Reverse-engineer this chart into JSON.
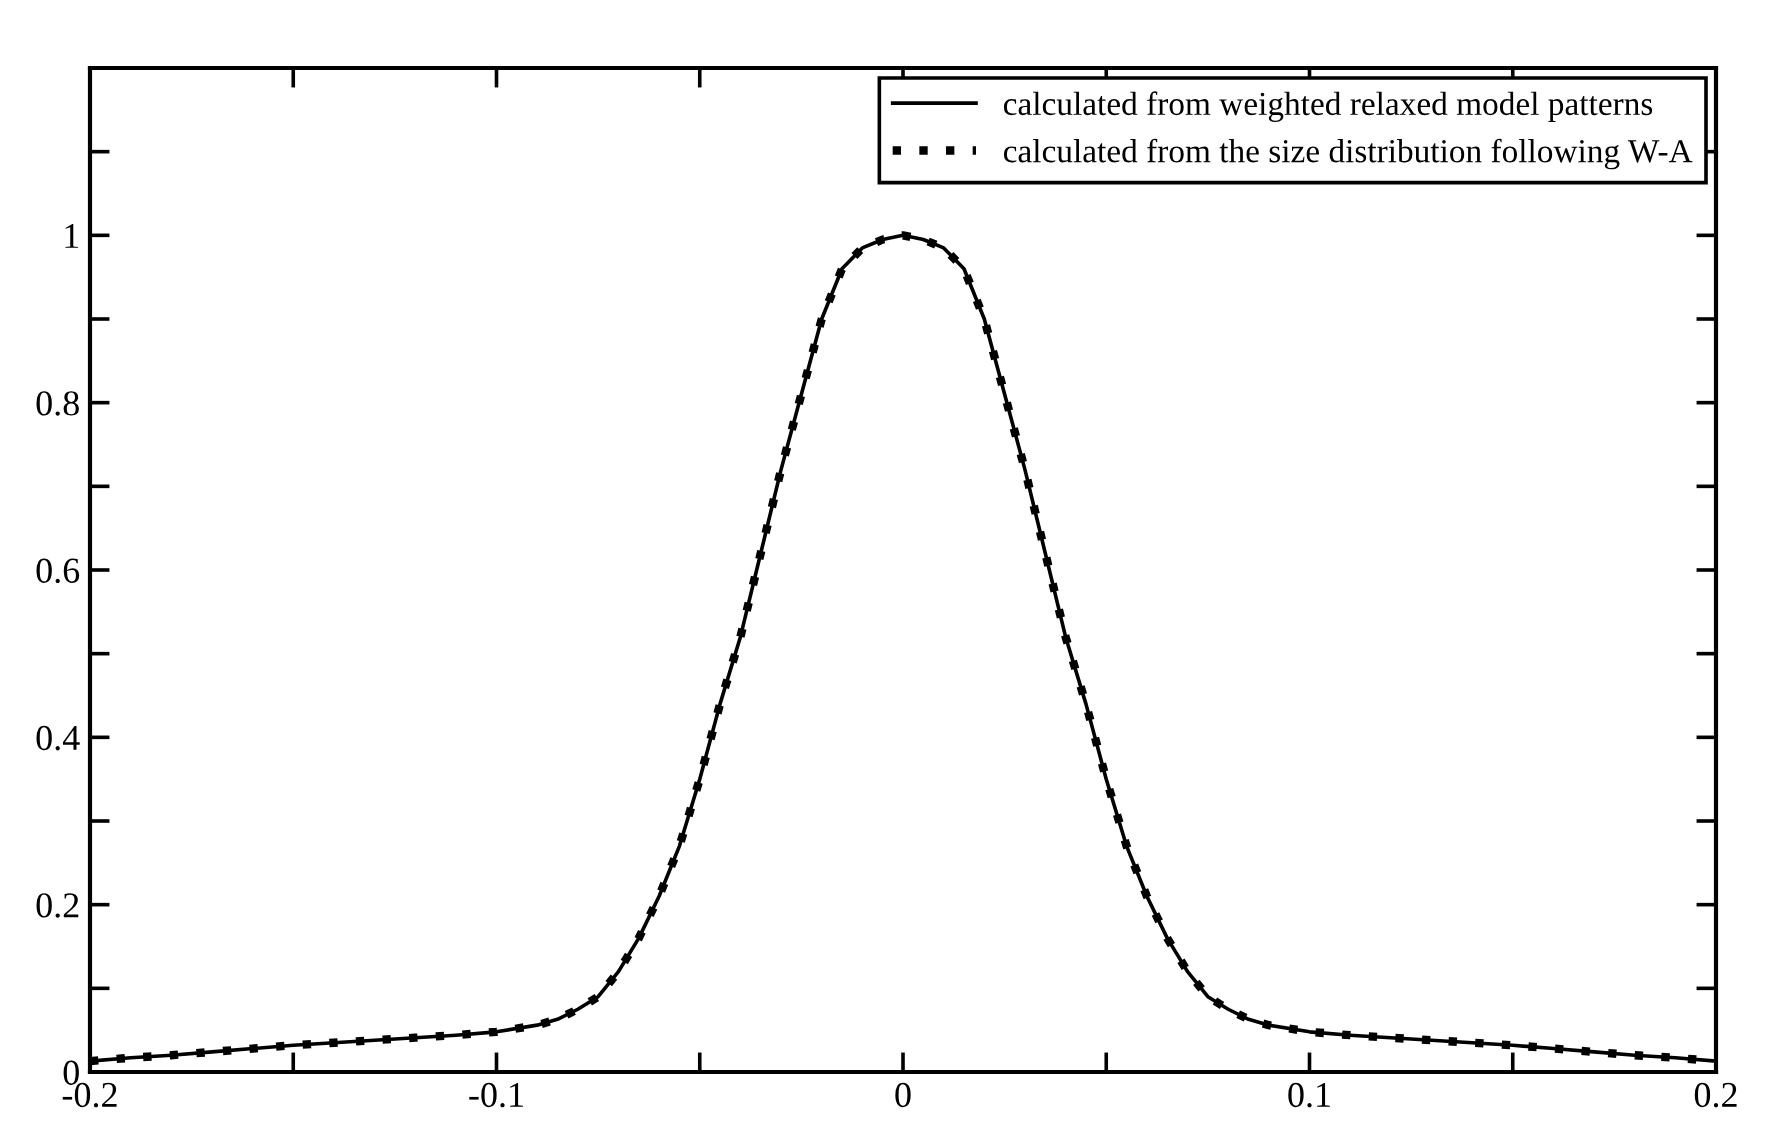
{
  "chart_data": {
    "type": "line",
    "x": [
      -0.2,
      -0.19,
      -0.18,
      -0.17,
      -0.16,
      -0.15,
      -0.14,
      -0.13,
      -0.12,
      -0.11,
      -0.1,
      -0.09,
      -0.085,
      -0.08,
      -0.075,
      -0.07,
      -0.065,
      -0.06,
      -0.055,
      -0.05,
      -0.045,
      -0.04,
      -0.035,
      -0.03,
      -0.025,
      -0.02,
      -0.015,
      -0.01,
      -0.005,
      0,
      0.005,
      0.01,
      0.015,
      0.02,
      0.025,
      0.03,
      0.035,
      0.04,
      0.045,
      0.05,
      0.055,
      0.06,
      0.065,
      0.07,
      0.075,
      0.08,
      0.085,
      0.09,
      0.1,
      0.11,
      0.12,
      0.13,
      0.14,
      0.15,
      0.16,
      0.17,
      0.18,
      0.19,
      0.2
    ],
    "series": [
      {
        "name": "calculated from weighted relaxed model patterns",
        "color": "#000000",
        "line_style": "solid",
        "values": [
          0.013,
          0.017,
          0.02,
          0.024,
          0.028,
          0.032,
          0.035,
          0.038,
          0.041,
          0.044,
          0.048,
          0.056,
          0.063,
          0.075,
          0.09,
          0.12,
          0.16,
          0.21,
          0.27,
          0.35,
          0.44,
          0.52,
          0.62,
          0.72,
          0.81,
          0.9,
          0.96,
          0.985,
          0.995,
          1.0,
          0.995,
          0.985,
          0.96,
          0.9,
          0.81,
          0.72,
          0.62,
          0.52,
          0.44,
          0.35,
          0.27,
          0.21,
          0.16,
          0.12,
          0.09,
          0.075,
          0.063,
          0.056,
          0.048,
          0.044,
          0.041,
          0.038,
          0.035,
          0.032,
          0.028,
          0.024,
          0.02,
          0.017,
          0.013
        ]
      },
      {
        "name": "calculated from the size distribution following W-A",
        "color": "#000000",
        "line_style": "dotted",
        "values": [
          0.013,
          0.017,
          0.02,
          0.024,
          0.028,
          0.032,
          0.035,
          0.038,
          0.041,
          0.044,
          0.048,
          0.056,
          0.063,
          0.075,
          0.09,
          0.12,
          0.16,
          0.21,
          0.27,
          0.35,
          0.44,
          0.52,
          0.62,
          0.72,
          0.81,
          0.9,
          0.96,
          0.985,
          0.995,
          1.0,
          0.995,
          0.985,
          0.96,
          0.9,
          0.81,
          0.72,
          0.62,
          0.52,
          0.44,
          0.35,
          0.27,
          0.21,
          0.16,
          0.12,
          0.09,
          0.075,
          0.063,
          0.056,
          0.048,
          0.044,
          0.041,
          0.038,
          0.035,
          0.032,
          0.028,
          0.024,
          0.02,
          0.017,
          0.013
        ]
      }
    ],
    "xlim": [
      -0.2,
      0.2
    ],
    "xticks": [
      -0.2,
      {
        "value": -0.15,
        "label": null
      },
      -0.1,
      {
        "value": -0.05,
        "label": null
      },
      0,
      {
        "value": 0.05,
        "label": null
      },
      0.1,
      {
        "value": 0.15,
        "label": null
      },
      0.2
    ],
    "ylim": [
      0,
      1.2
    ],
    "yticks": [
      0,
      {
        "value": 0.1,
        "label": null
      },
      0.2,
      {
        "value": 0.3,
        "label": null
      },
      0.4,
      {
        "value": 0.5,
        "label": null
      },
      0.6,
      {
        "value": 0.7,
        "label": null
      },
      0.8,
      {
        "value": 0.9,
        "label": null
      },
      1,
      {
        "value": 1.1,
        "label": null
      }
    ],
    "grid": false,
    "legend": "top right"
  }
}
